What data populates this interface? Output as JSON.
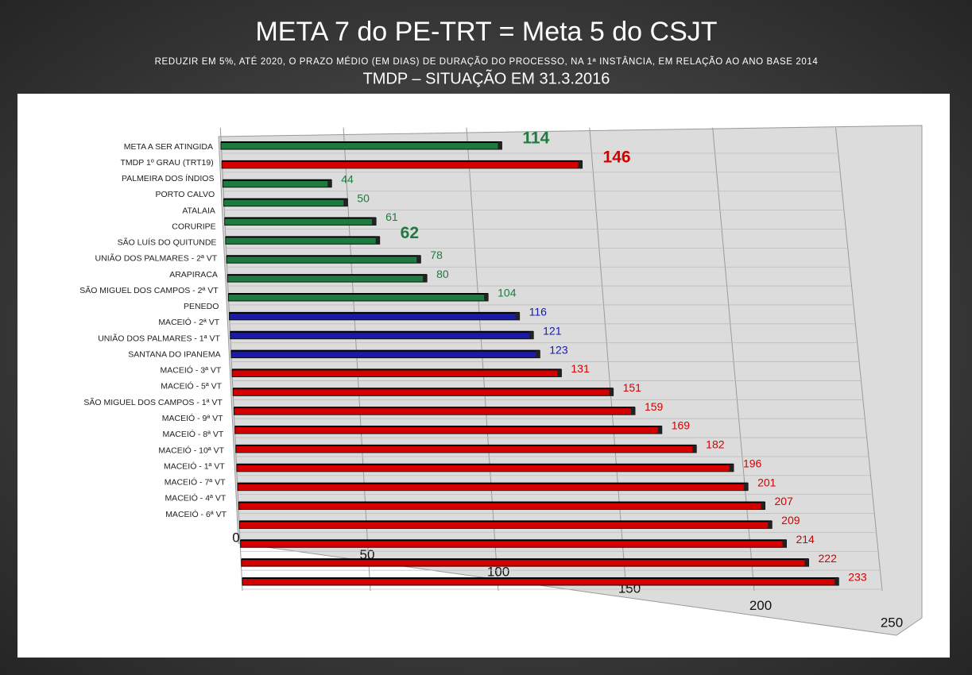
{
  "chart_data": {
    "type": "bar",
    "title": "META 7 do PE-TRT = Meta 5 do CSJT",
    "subtitle": "REDUZIR EM 5%, ATÉ 2020, O PRAZO MÉDIO (EM DIAS) DE DURAÇÃO DO PROCESSO, NA 1ª INSTÂNCIA, EM RELAÇÃO AO ANO BASE 2014",
    "subtitle2": "TMDP – SITUAÇÃO EM 31.3.2016",
    "orientation": "horizontal",
    "categories": [
      "META A SER ATINGIDA",
      "TMDP 1º GRAU (TRT19)",
      "PALMEIRA DOS ÍNDIOS",
      "PORTO CALVO",
      "ATALAIA",
      "CORURIPE",
      "SÃO LUÍS DO QUITUNDE",
      "UNIÃO DOS PALMARES - 2ª VT",
      "ARAPIRACA",
      "SÃO MIGUEL DOS CAMPOS - 2ª VT",
      "PENEDO",
      "MACEIÓ - 2ª VT",
      "UNIÃO DOS PALMARES - 1ª VT",
      "SANTANA DO IPANEMA",
      "MACEIÓ - 3ª VT",
      "MACEIÓ - 5ª VT",
      "SÃO MIGUEL DOS CAMPOS - 1ª VT",
      "MACEIÓ - 9ª VT",
      "MACEIÓ - 8ª VT",
      "MACEIÓ - 10ª VT",
      "MACEIÓ - 1ª VT",
      "MACEIÓ - 7ª VT",
      "MACEIÓ - 4ª VT",
      "MACEIÓ - 6ª VT"
    ],
    "values": [
      114,
      146,
      44,
      50,
      61,
      62,
      78,
      80,
      104,
      116,
      121,
      123,
      131,
      151,
      159,
      169,
      182,
      196,
      201,
      207,
      209,
      214,
      222,
      233
    ],
    "colors": [
      "#1f7a3f",
      "#d40000",
      "#1f7a3f",
      "#1f7a3f",
      "#1f7a3f",
      "#1f7a3f",
      "#1f7a3f",
      "#1f7a3f",
      "#1f7a3f",
      "#1a1aa8",
      "#1a1aa8",
      "#1a1aa8",
      "#d40000",
      "#d40000",
      "#d40000",
      "#d40000",
      "#d40000",
      "#d40000",
      "#d40000",
      "#d40000",
      "#d40000",
      "#d40000",
      "#d40000",
      "#d40000"
    ],
    "highlight": [
      0,
      1,
      5
    ],
    "xlim": [
      0,
      250
    ],
    "xticks": [
      0,
      50,
      100,
      150,
      200,
      250
    ],
    "grid": true
  }
}
